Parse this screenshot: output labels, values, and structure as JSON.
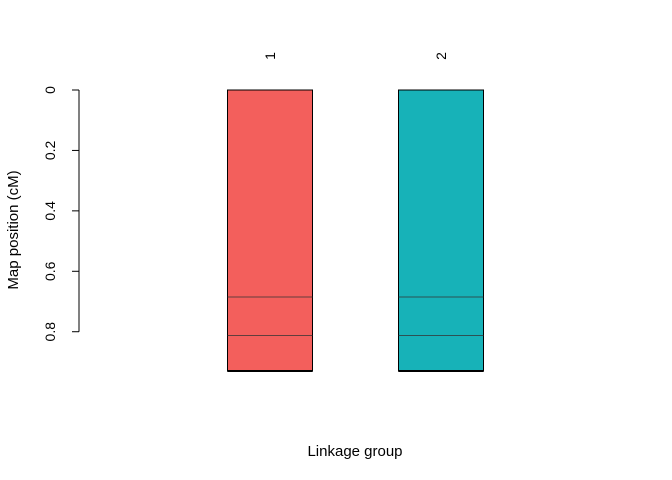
{
  "chart_data": {
    "type": "linkage-map",
    "xlabel": "Linkage group",
    "ylabel": "Map position (cM)",
    "ylim": [
      0,
      0.93
    ],
    "y_reversed": true,
    "y_ticks": [
      {
        "value": 0,
        "label": "0"
      },
      {
        "value": 0.2,
        "label": "0.2"
      },
      {
        "value": 0.4,
        "label": "0.4"
      },
      {
        "value": 0.6,
        "label": "0.6"
      },
      {
        "value": 0.8,
        "label": "0.8"
      }
    ],
    "groups": [
      {
        "label": "1",
        "length": 0.93,
        "color": "#F35F5C",
        "markers": [
          0.685,
          0.813
        ]
      },
      {
        "label": "2",
        "length": 0.93,
        "color": "#17B2B8",
        "markers": [
          0.685,
          0.813
        ]
      }
    ]
  }
}
